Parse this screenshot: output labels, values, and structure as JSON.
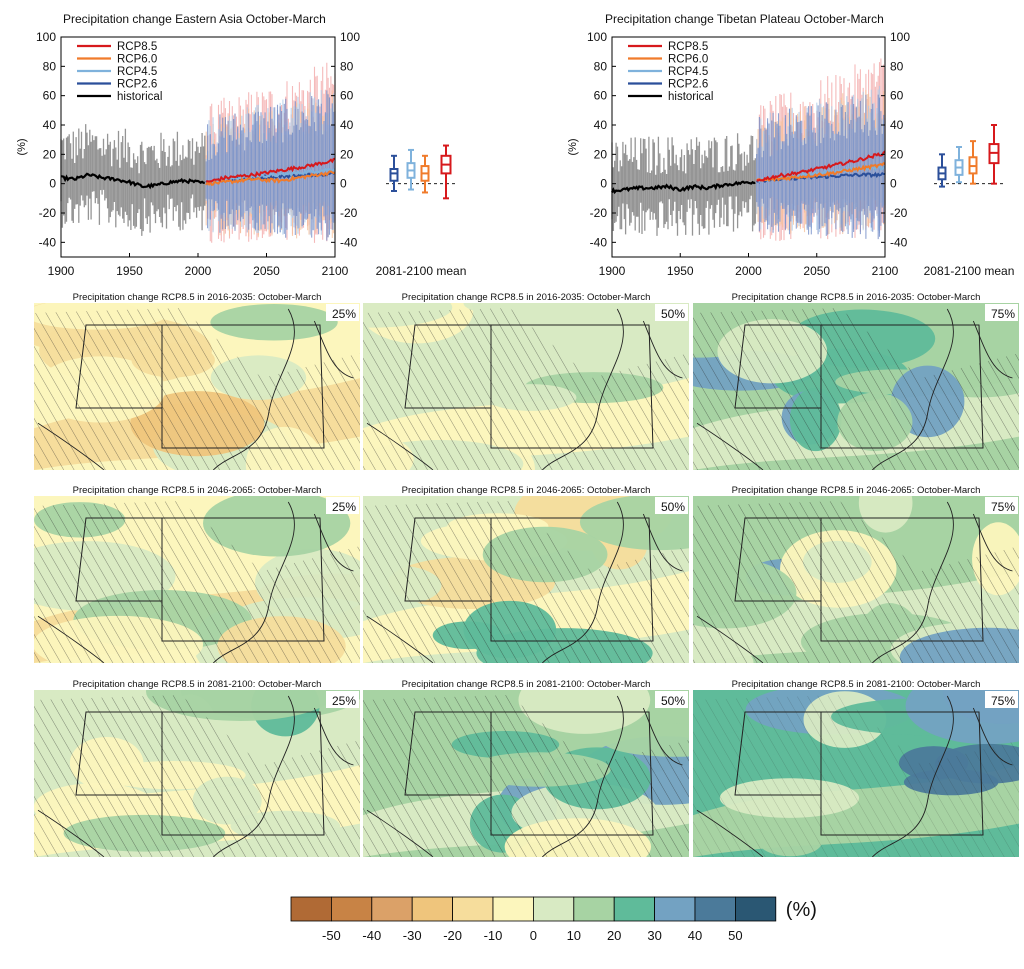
{
  "timeseries": [
    {
      "title": "Precipitation change Eastern Asia October-March",
      "ylabel": "(%)",
      "ylim": [
        -50,
        100
      ],
      "yticks": [
        -40,
        -20,
        0,
        20,
        40,
        60,
        80,
        100
      ],
      "xlim": [
        1900,
        2100
      ],
      "xticks": [
        1900,
        1950,
        2000,
        2050,
        2100
      ],
      "box_label": "2081-2100 mean",
      "legend": [
        "RCP8.5",
        "RCP6.0",
        "RCP4.5",
        "RCP2.6",
        "historical"
      ],
      "series": [
        {
          "name": "historical",
          "x": [
            1900,
            1910,
            1920,
            1930,
            1940,
            1950,
            1960,
            1970,
            1980,
            1990,
            2000,
            2005
          ],
          "y": [
            4,
            3,
            6,
            4,
            3,
            1,
            -2,
            -1,
            1,
            2,
            1,
            0
          ]
        },
        {
          "name": "RCP2.6",
          "x": [
            2006,
            2020,
            2040,
            2060,
            2080,
            2100
          ],
          "y": [
            1,
            3,
            4,
            5,
            6,
            7
          ]
        },
        {
          "name": "RCP4.5",
          "x": [
            2006,
            2020,
            2040,
            2060,
            2080,
            2100
          ],
          "y": [
            1,
            3,
            5,
            6,
            8,
            10
          ]
        },
        {
          "name": "RCP6.0",
          "x": [
            2006,
            2020,
            2040,
            2060,
            2080,
            2100
          ],
          "y": [
            0,
            1,
            3,
            2,
            5,
            8
          ]
        },
        {
          "name": "RCP8.5",
          "x": [
            2006,
            2020,
            2040,
            2060,
            2080,
            2100
          ],
          "y": [
            1,
            4,
            6,
            9,
            12,
            16
          ]
        }
      ],
      "boxes": [
        {
          "name": "RCP2.6",
          "min": -5,
          "q1": 2,
          "median": 7,
          "q3": 10,
          "max": 19
        },
        {
          "name": "RCP4.5",
          "min": -4,
          "q1": 4,
          "median": 9,
          "q3": 14,
          "max": 23
        },
        {
          "name": "RCP6.0",
          "min": -6,
          "q1": 2,
          "median": 7,
          "q3": 12,
          "max": 19
        },
        {
          "name": "RCP8.5",
          "min": -10,
          "q1": 7,
          "median": 13,
          "q3": 19,
          "max": 26
        }
      ]
    },
    {
      "title": "Precipitation change Tibetan Plateau October-March",
      "ylabel": "(%)",
      "ylim": [
        -50,
        100
      ],
      "yticks": [
        -40,
        -20,
        0,
        20,
        40,
        60,
        80,
        100
      ],
      "xlim": [
        1900,
        2100
      ],
      "xticks": [
        1900,
        1950,
        2000,
        2050,
        2100
      ],
      "box_label": "2081-2100 mean",
      "legend": [
        "RCP8.5",
        "RCP6.0",
        "RCP4.5",
        "RCP2.6",
        "historical"
      ],
      "series": [
        {
          "name": "historical",
          "x": [
            1900,
            1910,
            1920,
            1930,
            1940,
            1950,
            1960,
            1970,
            1980,
            1990,
            2000,
            2005
          ],
          "y": [
            -5,
            -4,
            -3,
            -3,
            -2,
            -4,
            -2,
            -3,
            -1,
            0,
            1,
            1
          ]
        },
        {
          "name": "RCP2.6",
          "x": [
            2006,
            2020,
            2040,
            2060,
            2080,
            2100
          ],
          "y": [
            2,
            3,
            4,
            5,
            6,
            6
          ]
        },
        {
          "name": "RCP4.5",
          "x": [
            2006,
            2020,
            2040,
            2060,
            2080,
            2100
          ],
          "y": [
            2,
            4,
            6,
            8,
            10,
            11
          ]
        },
        {
          "name": "RCP6.0",
          "x": [
            2006,
            2020,
            2040,
            2060,
            2080,
            2100
          ],
          "y": [
            2,
            3,
            5,
            7,
            10,
            13
          ]
        },
        {
          "name": "RCP8.5",
          "x": [
            2006,
            2020,
            2040,
            2060,
            2080,
            2100
          ],
          "y": [
            2,
            5,
            8,
            12,
            16,
            21
          ]
        }
      ],
      "boxes": [
        {
          "name": "RCP2.6",
          "min": -2,
          "q1": 3,
          "median": 7,
          "q3": 11,
          "max": 20
        },
        {
          "name": "RCP4.5",
          "min": 1,
          "q1": 6,
          "median": 11,
          "q3": 16,
          "max": 25
        },
        {
          "name": "RCP6.0",
          "min": 0,
          "q1": 7,
          "median": 12,
          "q3": 18,
          "max": 29
        },
        {
          "name": "RCP8.5",
          "min": 0,
          "q1": 14,
          "median": 21,
          "q3": 27,
          "max": 40
        }
      ]
    }
  ],
  "maps": {
    "titles": [
      "Precipitation change RCP8.5 in 2016-2035: October-March",
      "Precipitation change RCP8.5 in 2046-2065: October-March",
      "Precipitation change RCP8.5 in 2081-2100: October-March"
    ],
    "percentiles": [
      "25%",
      "50%",
      "75%"
    ],
    "regional_change_classes": [
      [
        [
          "-10 to 0",
          "0 to 10",
          "10 to 20"
        ],
        [
          "0 to 10",
          "10 to 20",
          "10 to 20"
        ],
        [
          "10 to 20",
          "10 to 20",
          "20 to 30"
        ]
      ],
      [
        [
          "-10 to 0",
          "0 to 10",
          "10 to 20"
        ],
        [
          "0 to 10",
          "10 to 20",
          "20 to 30"
        ],
        [
          "10 to 20",
          "20 to 30",
          "30 to 40"
        ]
      ],
      [
        [
          "0 to 10",
          "10 to 20",
          "20 to 30"
        ],
        [
          "10 to 20",
          "20 to 30",
          "30 to 40"
        ],
        [
          "20 to 30",
          "30 to 40",
          "40 to 50"
        ]
      ]
    ]
  },
  "colorbar": {
    "unit": "(%)",
    "labels": [
      "-50",
      "-40",
      "-30",
      "-20",
      "-10",
      "0",
      "10",
      "20",
      "30",
      "40",
      "50"
    ],
    "colors": [
      "#b06a35",
      "#c88345",
      "#dba168",
      "#efc57c",
      "#f6dd9c",
      "#fcf6bd",
      "#d8eac3",
      "#a7d3a3",
      "#5fbb9a",
      "#73a2c2",
      "#4b7a9a",
      "#2a5773"
    ]
  },
  "chart_data": [
    {
      "type": "line",
      "title": "Precipitation change Eastern Asia October-March",
      "ylabel": "(%)",
      "xlabel": "",
      "xlim": [
        1900,
        2100
      ],
      "ylim": [
        -50,
        100
      ],
      "series": [
        {
          "name": "historical",
          "x": [
            1900,
            1950,
            2005
          ],
          "y": [
            4,
            1,
            0
          ]
        },
        {
          "name": "RCP2.6",
          "x": [
            2006,
            2100
          ],
          "y": [
            1,
            7
          ]
        },
        {
          "name": "RCP4.5",
          "x": [
            2006,
            2100
          ],
          "y": [
            1,
            10
          ]
        },
        {
          "name": "RCP6.0",
          "x": [
            2006,
            2100
          ],
          "y": [
            0,
            8
          ]
        },
        {
          "name": "RCP8.5",
          "x": [
            2006,
            2100
          ],
          "y": [
            1,
            16
          ]
        }
      ]
    },
    {
      "type": "line",
      "title": "Precipitation change Tibetan Plateau October-March",
      "ylabel": "(%)",
      "xlabel": "",
      "xlim": [
        1900,
        2100
      ],
      "ylim": [
        -50,
        100
      ],
      "series": [
        {
          "name": "historical",
          "x": [
            1900,
            1950,
            2005
          ],
          "y": [
            -5,
            -4,
            1
          ]
        },
        {
          "name": "RCP2.6",
          "x": [
            2006,
            2100
          ],
          "y": [
            2,
            6
          ]
        },
        {
          "name": "RCP4.5",
          "x": [
            2006,
            2100
          ],
          "y": [
            2,
            11
          ]
        },
        {
          "name": "RCP6.0",
          "x": [
            2006,
            2100
          ],
          "y": [
            2,
            13
          ]
        },
        {
          "name": "RCP8.5",
          "x": [
            2006,
            2100
          ],
          "y": [
            2,
            21
          ]
        }
      ]
    },
    {
      "type": "heatmap",
      "rows": [
        "Precipitation change RCP8.5 in 2016-2035: October-March",
        "Precipitation change RCP8.5 in 2046-2065: October-March",
        "Precipitation change RCP8.5 in 2081-2100: October-March"
      ],
      "columns": [
        "25%",
        "50%",
        "75%"
      ],
      "colorbar_labels": [
        "-50",
        "-40",
        "-30",
        "-20",
        "-10",
        "0",
        "10",
        "20",
        "30",
        "40",
        "50"
      ],
      "unit": "(%)"
    }
  ]
}
